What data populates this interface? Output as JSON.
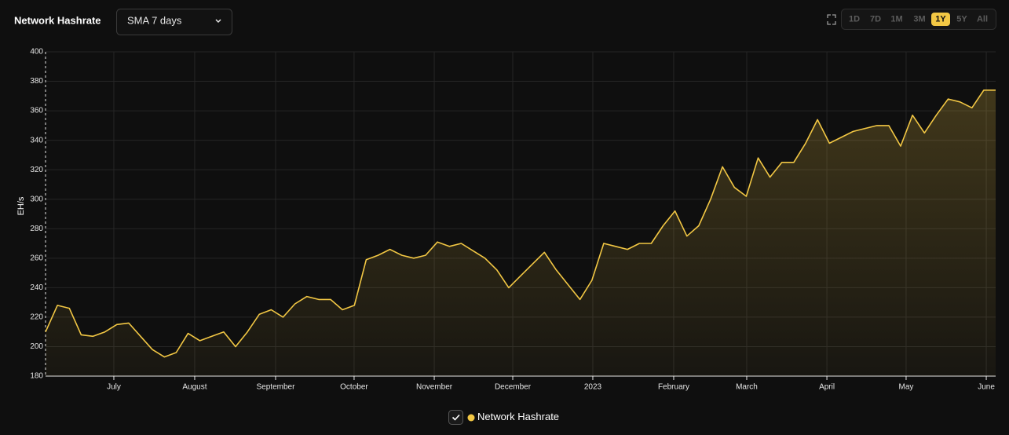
{
  "header": {
    "title": "Network Hashrate",
    "dropdown": "SMA 7 days",
    "ranges": [
      {
        "label": "1D",
        "active": false
      },
      {
        "label": "7D",
        "active": false
      },
      {
        "label": "1M",
        "active": false
      },
      {
        "label": "3M",
        "active": false
      },
      {
        "label": "1Y",
        "active": true
      },
      {
        "label": "5Y",
        "active": false
      },
      {
        "label": "All",
        "active": false
      }
    ]
  },
  "chart_data": {
    "type": "area",
    "y_label": "EH/s",
    "series": [
      {
        "name": "Network Hashrate",
        "color": "#f2c744",
        "values": [
          210,
          228,
          226,
          208,
          207,
          210,
          215,
          216,
          207,
          198,
          193,
          196,
          209,
          204,
          207,
          210,
          200,
          210,
          222,
          225,
          220,
          229,
          234,
          232,
          232,
          225,
          228,
          259,
          262,
          266,
          262,
          260,
          262,
          271,
          268,
          270,
          265,
          260,
          252,
          240,
          248,
          256,
          264,
          252,
          242,
          232,
          245,
          270,
          268,
          266,
          270,
          270,
          282,
          292,
          275,
          282,
          300,
          322,
          308,
          302,
          328,
          315,
          325,
          325,
          338,
          354,
          338,
          342,
          346,
          348,
          350,
          350,
          336,
          357,
          345,
          357,
          368,
          366,
          362,
          374,
          374
        ]
      }
    ],
    "xlim": [
      0,
      80
    ],
    "xticks": [
      {
        "value": 5.75,
        "label": "July"
      },
      {
        "value": 12.56,
        "label": "August"
      },
      {
        "value": 19.37,
        "label": "September"
      },
      {
        "value": 25.98,
        "label": "October"
      },
      {
        "value": 32.73,
        "label": "November"
      },
      {
        "value": 39.34,
        "label": "December"
      },
      {
        "value": 46.08,
        "label": "2023"
      },
      {
        "value": 52.89,
        "label": "February"
      },
      {
        "value": 59.04,
        "label": "March"
      },
      {
        "value": 65.79,
        "label": "April"
      },
      {
        "value": 72.46,
        "label": "May"
      },
      {
        "value": 79.21,
        "label": "June"
      }
    ],
    "ylim": [
      180,
      400
    ],
    "yticks": [
      180,
      200,
      220,
      240,
      260,
      280,
      300,
      320,
      340,
      360,
      380,
      400
    ],
    "grid": true
  }
}
